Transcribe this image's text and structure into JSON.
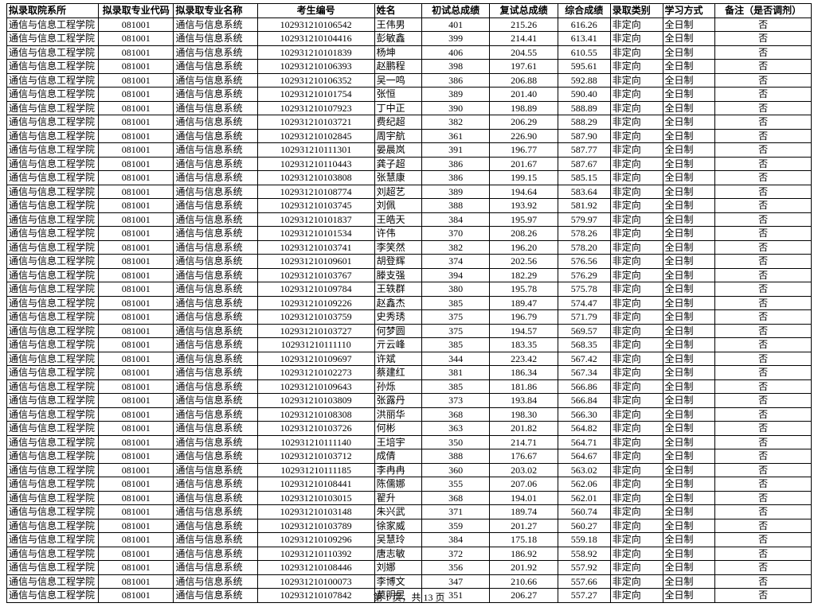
{
  "table": {
    "columns": [
      "拟录取院系所",
      "拟录取专业代码",
      "拟录取专业名称",
      "考生编号",
      "姓名",
      "初试总成绩",
      "复试总成绩",
      "综合成绩",
      "录取类别",
      "学习方式",
      "备注（是否调剂）"
    ],
    "col_classes": [
      "col-dept",
      "col-major-code",
      "col-major-name",
      "col-examid",
      "col-name",
      "col-score1",
      "col-score2",
      "col-total",
      "col-type",
      "col-study",
      "col-remark"
    ],
    "defaults": {
      "dept": "通信与信息工程学院",
      "major_code": "081001",
      "major_name": "通信与信息系统",
      "type": "非定向",
      "study": "全日制",
      "remark": "否"
    },
    "rows": [
      {
        "examid": "102931210106542",
        "name": "王伟男",
        "s1": "401",
        "s2": "215.26",
        "total": "616.26"
      },
      {
        "examid": "102931210104416",
        "name": "彭敏鑫",
        "s1": "399",
        "s2": "214.41",
        "total": "613.41"
      },
      {
        "examid": "102931210101839",
        "name": "杨坤",
        "s1": "406",
        "s2": "204.55",
        "total": "610.55"
      },
      {
        "examid": "102931210106393",
        "name": "赵鹏程",
        "s1": "398",
        "s2": "197.61",
        "total": "595.61"
      },
      {
        "examid": "102931210106352",
        "name": "吴一鸣",
        "s1": "386",
        "s2": "206.88",
        "total": "592.88"
      },
      {
        "examid": "102931210101754",
        "name": "张恒",
        "s1": "389",
        "s2": "201.40",
        "total": "590.40"
      },
      {
        "examid": "102931210107923",
        "name": "丁中正",
        "s1": "390",
        "s2": "198.89",
        "total": "588.89"
      },
      {
        "examid": "102931210103721",
        "name": "费纪超",
        "s1": "382",
        "s2": "206.29",
        "total": "588.29"
      },
      {
        "examid": "102931210102845",
        "name": "周宇航",
        "s1": "361",
        "s2": "226.90",
        "total": "587.90"
      },
      {
        "examid": "102931210111301",
        "name": "晏晨岚",
        "s1": "391",
        "s2": "196.77",
        "total": "587.77"
      },
      {
        "examid": "102931210110443",
        "name": "龚子超",
        "s1": "386",
        "s2": "201.67",
        "total": "587.67"
      },
      {
        "examid": "102931210103808",
        "name": "张慧康",
        "s1": "386",
        "s2": "199.15",
        "total": "585.15"
      },
      {
        "examid": "102931210108774",
        "name": "刘超艺",
        "s1": "389",
        "s2": "194.64",
        "total": "583.64"
      },
      {
        "examid": "102931210103745",
        "name": "刘佩",
        "s1": "388",
        "s2": "193.92",
        "total": "581.92"
      },
      {
        "examid": "102931210101837",
        "name": "王皓天",
        "s1": "384",
        "s2": "195.97",
        "total": "579.97"
      },
      {
        "examid": "102931210101534",
        "name": "许伟",
        "s1": "370",
        "s2": "208.26",
        "total": "578.26"
      },
      {
        "examid": "102931210103741",
        "name": "李笑然",
        "s1": "382",
        "s2": "196.20",
        "total": "578.20"
      },
      {
        "examid": "102931210109601",
        "name": "胡登辉",
        "s1": "374",
        "s2": "202.56",
        "total": "576.56"
      },
      {
        "examid": "102931210103767",
        "name": "滕支强",
        "s1": "394",
        "s2": "182.29",
        "total": "576.29"
      },
      {
        "examid": "102931210109784",
        "name": "王轶群",
        "s1": "380",
        "s2": "195.78",
        "total": "575.78"
      },
      {
        "examid": "102931210109226",
        "name": "赵鑫杰",
        "s1": "385",
        "s2": "189.47",
        "total": "574.47"
      },
      {
        "examid": "102931210103759",
        "name": "史秀琇",
        "s1": "375",
        "s2": "196.79",
        "total": "571.79"
      },
      {
        "examid": "102931210103727",
        "name": "何梦圆",
        "s1": "375",
        "s2": "194.57",
        "total": "569.57"
      },
      {
        "examid": "102931210111110",
        "name": "亓云峰",
        "s1": "385",
        "s2": "183.35",
        "total": "568.35"
      },
      {
        "examid": "102931210109697",
        "name": "许斌",
        "s1": "344",
        "s2": "223.42",
        "total": "567.42"
      },
      {
        "examid": "102931210102273",
        "name": "蔡建红",
        "s1": "381",
        "s2": "186.34",
        "total": "567.34"
      },
      {
        "examid": "102931210109643",
        "name": "孙烁",
        "s1": "385",
        "s2": "181.86",
        "total": "566.86"
      },
      {
        "examid": "102931210103809",
        "name": "张露丹",
        "s1": "373",
        "s2": "193.84",
        "total": "566.84"
      },
      {
        "examid": "102931210108308",
        "name": "洪丽华",
        "s1": "368",
        "s2": "198.30",
        "total": "566.30"
      },
      {
        "examid": "102931210103726",
        "name": "何彬",
        "s1": "363",
        "s2": "201.82",
        "total": "564.82"
      },
      {
        "examid": "102931210111140",
        "name": "王培宇",
        "s1": "350",
        "s2": "214.71",
        "total": "564.71"
      },
      {
        "examid": "102931210103712",
        "name": "成倩",
        "s1": "388",
        "s2": "176.67",
        "total": "564.67"
      },
      {
        "examid": "102931210111185",
        "name": "李冉冉",
        "s1": "360",
        "s2": "203.02",
        "total": "563.02"
      },
      {
        "examid": "102931210108441",
        "name": "陈儒娜",
        "s1": "355",
        "s2": "207.06",
        "total": "562.06"
      },
      {
        "examid": "102931210103015",
        "name": "翟升",
        "s1": "368",
        "s2": "194.01",
        "total": "562.01"
      },
      {
        "examid": "102931210103148",
        "name": "朱兴武",
        "s1": "371",
        "s2": "189.74",
        "total": "560.74"
      },
      {
        "examid": "102931210103789",
        "name": "徐家威",
        "s1": "359",
        "s2": "201.27",
        "total": "560.27"
      },
      {
        "examid": "102931210109296",
        "name": "吴慧玲",
        "s1": "384",
        "s2": "175.18",
        "total": "559.18"
      },
      {
        "examid": "102931210110392",
        "name": "唐志敏",
        "s1": "372",
        "s2": "186.92",
        "total": "558.92"
      },
      {
        "examid": "102931210108446",
        "name": "刘娜",
        "s1": "356",
        "s2": "201.92",
        "total": "557.92"
      },
      {
        "examid": "102931210100073",
        "name": "李博文",
        "s1": "347",
        "s2": "210.66",
        "total": "557.66"
      },
      {
        "examid": "102931210107842",
        "name": "莫明昱",
        "s1": "351",
        "s2": "206.27",
        "total": "557.27"
      }
    ]
  },
  "pager": {
    "text": "第 1 页，共 13 页"
  }
}
